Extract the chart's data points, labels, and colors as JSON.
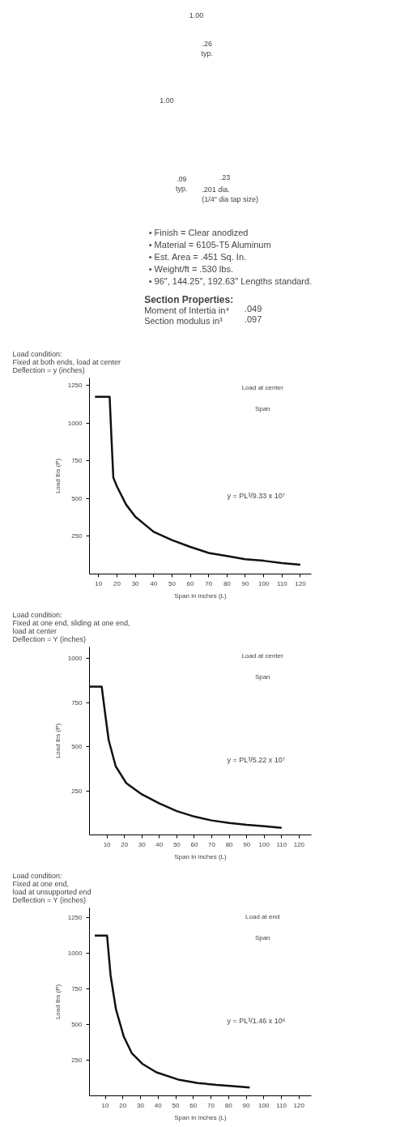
{
  "chart_data": [
    {
      "type": "other",
      "annotations": [
        "1.00",
        "1.00",
        ".26\ntyp.",
        ".09\ntyp.",
        ".23",
        ".201 dia.\n(1/4\" dia tap size)",
        "•  Finish = Clear anodized",
        "•  Material = 6105-T5 Aluminum",
        "•  Est. Area = .451 Sq. In.",
        "•  Weight/ft = .530 lbs.",
        "•  96\", 144.25\", 192.63\" Lengths standard.",
        "Section Properties:",
        "Moment of Intertia in⁴",
        ".049",
        "Section modulus in³",
        ".097"
      ]
    },
    {
      "type": "line",
      "title": "Load condition:\nFixed at both ends, load at center\nDeflection = y (inches)",
      "xlabel": "Span in inches (L)",
      "ylabel": "Load lbs (P)",
      "xlim": [
        5,
        126
      ],
      "ylim": [
        0,
        1300
      ],
      "xticks": [
        10,
        20,
        30,
        40,
        50,
        60,
        70,
        80,
        90,
        100,
        110,
        120
      ],
      "yticks": [
        250,
        500,
        750,
        1000,
        1250
      ],
      "annotations": [
        "Load at center",
        "Span",
        "y = PL³/9.33 x 10⁷"
      ],
      "series": [
        {
          "color": "#111111",
          "x": [
            8,
            16,
            17,
            18,
            20,
            25,
            30,
            40,
            50,
            60,
            70,
            80,
            90,
            100,
            110,
            120
          ],
          "values": [
            1175,
            1175,
            900,
            640,
            580,
            460,
            380,
            280,
            225,
            180,
            140,
            120,
            98,
            88,
            72,
            62
          ]
        }
      ]
    },
    {
      "type": "line",
      "title": "Load condition:\nFixed at one end, sliding at one end,\nload at center\nDeflection = Y (inches)",
      "xlabel": "Span in inches (L)",
      "ylabel": "Load lbs (P)",
      "xlim": [
        0,
        127
      ],
      "ylim": [
        0,
        1065
      ],
      "xticks": [
        10,
        20,
        30,
        40,
        50,
        60,
        70,
        80,
        90,
        100,
        110,
        120
      ],
      "yticks": [
        250,
        500,
        750,
        1000
      ],
      "annotations": [
        "Load at center",
        "Span",
        "y = PL³/5.22 x 10⁷"
      ],
      "series": [
        {
          "color": "#111111",
          "x": [
            0,
            7,
            9,
            11,
            15,
            21,
            30,
            40,
            50,
            60,
            70,
            80,
            90,
            100,
            110
          ],
          "values": [
            840,
            840,
            685,
            537,
            389,
            294,
            230,
            178,
            135,
            104,
            82,
            68,
            57,
            49,
            40
          ]
        }
      ]
    },
    {
      "type": "line",
      "title": "Load condition:\nFixed at one end,\nload at unsupported end\nDeflection = Y (inches)",
      "xlabel": "Span in inches (L)",
      "ylabel": "Load lbs (P)",
      "xlim": [
        1,
        127
      ],
      "ylim": [
        0,
        1320
      ],
      "xticks": [
        10,
        20,
        30,
        40,
        50,
        60,
        70,
        80,
        90,
        100,
        110,
        120
      ],
      "yticks": [
        250,
        500,
        750,
        1000,
        1250
      ],
      "annotations": [
        "Load at end",
        "Span",
        "y = PL³/1.46 x 10⁶"
      ],
      "series": [
        {
          "color": "#111111",
          "x": [
            4,
            11,
            13,
            16,
            20.5,
            25,
            31,
            39,
            52,
            62.5,
            73,
            83.5,
            92
          ],
          "values": [
            1125,
            1125,
            845,
            610,
            415,
            300,
            225,
            165,
            112,
            90,
            77,
            67,
            58
          ]
        }
      ]
    }
  ]
}
